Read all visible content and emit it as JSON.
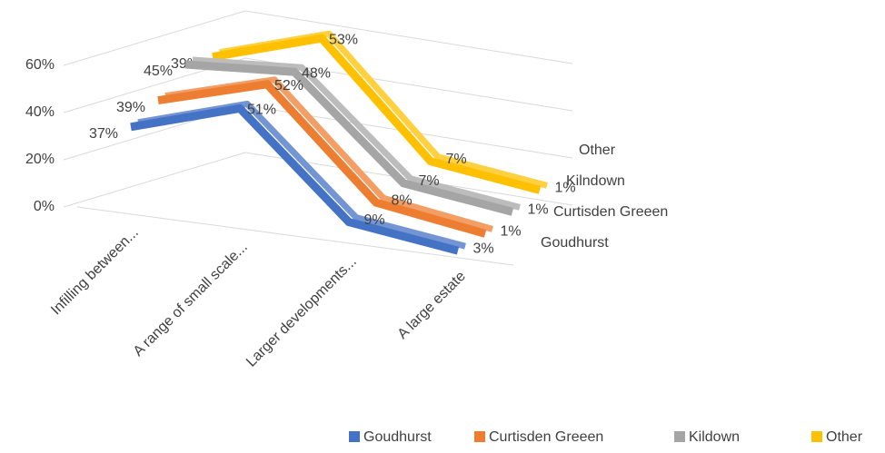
{
  "chart_data": {
    "type": "line3d",
    "categories": [
      "Infilling between...",
      "A range of small scale...",
      "Larger developments...",
      "A large estate"
    ],
    "series": [
      {
        "name": "Goudhurst",
        "color": "#4472c4",
        "values": [
          37,
          51,
          9,
          3
        ],
        "value_labels": [
          "37%",
          "51%",
          "9%",
          "3%"
        ]
      },
      {
        "name": "Curtisden Greeen",
        "color": "#ed7d31",
        "values": [
          39,
          52,
          8,
          1
        ],
        "value_labels": [
          "39%",
          "52%",
          "8%",
          "1%"
        ]
      },
      {
        "name": "Kildown",
        "color": "#a5a5a5",
        "values": [
          45,
          48,
          7,
          1
        ],
        "value_labels": [
          "45%",
          "48%",
          "7%",
          "1%"
        ]
      },
      {
        "name": "Other",
        "color": "#ffc000",
        "values": [
          39,
          53,
          7,
          1
        ],
        "value_labels": [
          "39%",
          "53%",
          "7%",
          "1%"
        ]
      }
    ],
    "depth_labels": [
      "Goudhurst",
      "Curtisden Greeen",
      "Kilndown",
      "Other"
    ],
    "ylim": [
      0,
      60
    ],
    "yticks": [
      {
        "value": 0,
        "label": "0%"
      },
      {
        "value": 20,
        "label": "20%"
      },
      {
        "value": 40,
        "label": "40%"
      },
      {
        "value": 60,
        "label": "60%"
      }
    ],
    "grid": true,
    "legend": "bottom"
  }
}
